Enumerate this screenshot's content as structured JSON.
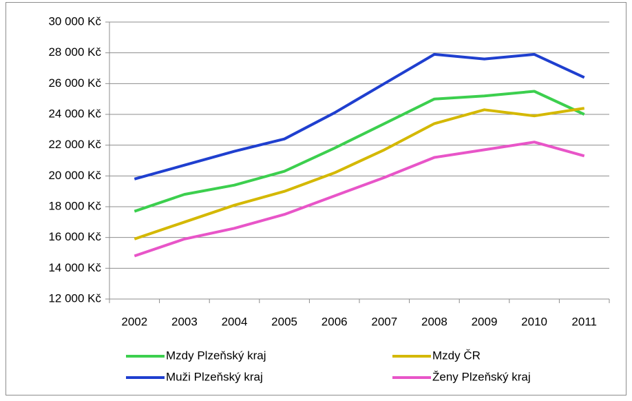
{
  "chart_data": {
    "type": "line",
    "categories": [
      "2002",
      "2003",
      "2004",
      "2005",
      "2006",
      "2007",
      "2008",
      "2009",
      "2010",
      "2011"
    ],
    "series": [
      {
        "name": "Mzdy Plzeňský kraj",
        "color": "#3ccf4e",
        "values": [
          17700,
          18800,
          19400,
          20300,
          21800,
          23400,
          25000,
          25200,
          25500,
          24000
        ]
      },
      {
        "name": "Mzdy ČR",
        "color": "#d4b800",
        "values": [
          15900,
          17000,
          18100,
          19000,
          20200,
          21700,
          23400,
          24300,
          23900,
          24400
        ]
      },
      {
        "name": "Muži Plzeňský kraj",
        "color": "#1f3fcf",
        "values": [
          19800,
          20700,
          21600,
          22400,
          24100,
          26000,
          27900,
          27600,
          27900,
          26400
        ]
      },
      {
        "name": "Ženy Plzeňský kraj",
        "color": "#e855c8",
        "values": [
          14800,
          15900,
          16600,
          17500,
          18700,
          19900,
          21200,
          21700,
          22200,
          21300
        ]
      }
    ],
    "ylim": [
      12000,
      30000
    ],
    "yticks": [
      {
        "value": 12000,
        "label": "12 000 Kč"
      },
      {
        "value": 14000,
        "label": "14 000 Kč"
      },
      {
        "value": 16000,
        "label": "16 000 Kč"
      },
      {
        "value": 18000,
        "label": "18 000 Kč"
      },
      {
        "value": 20000,
        "label": "20 000 Kč"
      },
      {
        "value": 22000,
        "label": "22 000 Kč"
      },
      {
        "value": 24000,
        "label": "24 000 Kč"
      },
      {
        "value": 26000,
        "label": "26 000 Kč"
      },
      {
        "value": 28000,
        "label": "28 000 Kč"
      },
      {
        "value": 30000,
        "label": "30 000 Kč"
      }
    ],
    "grid": true
  }
}
